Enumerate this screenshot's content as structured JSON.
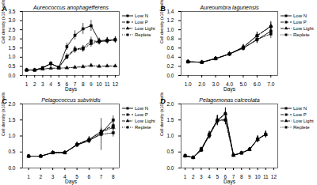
{
  "chart_data": [
    {
      "type": "line",
      "title": "Aureococcus anophagefferens",
      "annotations": [
        "A"
      ],
      "xlabel": "Days",
      "ylabel": "Cell density (x10⁶ cells mL⁻¹)",
      "xlim": [
        0.5,
        12.5
      ],
      "xticks": [
        1,
        2,
        3,
        4,
        5,
        6,
        7,
        8,
        9,
        10,
        11,
        12
      ],
      "ylim": [
        0.0,
        3.5
      ],
      "yticks": [
        {
          "value": 0.0,
          "label": "0.0"
        },
        0.5,
        {
          "value": 1.0,
          "label": "1.0"
        },
        1.5,
        {
          "value": 2.0,
          "label": "2.0"
        },
        2.5,
        {
          "value": 3.0,
          "label": "3.0"
        },
        3.5
      ],
      "grid": false,
      "x": [
        1,
        2,
        3,
        4,
        5,
        6,
        7,
        8,
        9,
        10,
        11,
        12
      ],
      "series": [
        {
          "name": "Low N",
          "color": "black",
          "marker": "square",
          "line_style": "solid",
          "values": [
            0.3,
            0.3,
            0.42,
            0.65,
            0.45,
            1.58,
            2.2,
            2.55,
            2.72,
            1.9,
            1.93,
            1.95
          ],
          "yerr": [
            0.04,
            0.04,
            0.05,
            0.1,
            0.05,
            0.2,
            0.25,
            0.3,
            0.3,
            0.15,
            0.15,
            0.15
          ]
        },
        {
          "name": "Low P",
          "color": "black",
          "marker": "square",
          "line_style": "dashed",
          "values": [
            0.3,
            0.3,
            0.42,
            0.65,
            0.45,
            1.05,
            1.45,
            1.5,
            1.9,
            1.85,
            1.9,
            1.95
          ],
          "yerr": [
            0.04,
            0.04,
            0.05,
            0.1,
            0.05,
            0.15,
            0.15,
            0.15,
            0.2,
            0.15,
            0.15,
            0.15
          ]
        },
        {
          "name": "Low Light",
          "color": "black",
          "marker": "triangle",
          "line_style": "dashdot",
          "values": [
            0.3,
            0.3,
            0.35,
            0.4,
            0.4,
            0.42,
            0.45,
            0.48,
            0.55,
            0.5,
            0.52,
            0.52
          ],
          "yerr": [
            0.03,
            0.03,
            0.03,
            0.04,
            0.04,
            0.04,
            0.04,
            0.04,
            0.06,
            0.04,
            0.04,
            0.04
          ]
        },
        {
          "name": "Replete",
          "color": "black",
          "marker": "square",
          "line_style": "dotted",
          "values": [
            0.3,
            0.3,
            0.42,
            0.65,
            0.45,
            1.0,
            1.4,
            1.45,
            1.75,
            1.85,
            1.9,
            1.95
          ],
          "yerr": [
            0.04,
            0.04,
            0.05,
            0.1,
            0.05,
            0.1,
            0.18,
            0.18,
            0.2,
            0.18,
            0.18,
            0.18
          ]
        }
      ]
    },
    {
      "type": "line",
      "title": "Aureoumbra lagunensis",
      "annotations": [
        "B"
      ],
      "xlabel": "Days",
      "ylabel": "Cell density (x10⁶ cells mL⁻¹)",
      "xlim": [
        0.5,
        7.5
      ],
      "xticks": [
        1,
        2,
        3,
        4,
        5,
        6,
        7
      ],
      "ylim": [
        0.0,
        1.4
      ],
      "yticks": [
        {
          "value": 0.0,
          "label": "0.0"
        },
        0.2,
        0.4,
        0.6,
        0.8,
        {
          "value": 1.0,
          "label": "1.0"
        },
        1.2,
        1.4
      ],
      "grid": false,
      "x": [
        1,
        2,
        3,
        4,
        5,
        6,
        7
      ],
      "series": [
        {
          "name": "Low N",
          "color": "black",
          "marker": "square",
          "line_style": "solid",
          "values": [
            0.3,
            0.29,
            0.37,
            0.47,
            0.6,
            0.78,
            0.97
          ],
          "yerr": [
            0.04,
            0.04,
            0.04,
            0.05,
            0.06,
            0.08,
            0.1
          ]
        },
        {
          "name": "Low P",
          "color": "black",
          "marker": "square",
          "line_style": "dashed",
          "values": [
            0.3,
            0.29,
            0.37,
            0.47,
            0.62,
            0.87,
            1.07
          ],
          "yerr": [
            0.04,
            0.04,
            0.04,
            0.05,
            0.06,
            0.08,
            0.1
          ]
        },
        {
          "name": "Low Light",
          "color": "black",
          "marker": "triangle",
          "line_style": "dashdot",
          "values": [
            0.3,
            0.29,
            0.37,
            0.47,
            0.62,
            0.87,
            1.08
          ],
          "yerr": [
            0.04,
            0.04,
            0.04,
            0.05,
            0.06,
            0.08,
            0.1
          ]
        },
        {
          "name": "Replete",
          "color": "black",
          "marker": "square",
          "line_style": "dotted",
          "values": [
            0.3,
            0.29,
            0.37,
            0.47,
            0.6,
            0.79,
            0.91
          ],
          "yerr": [
            0.04,
            0.04,
            0.04,
            0.05,
            0.06,
            0.08,
            0.1
          ]
        }
      ]
    },
    {
      "type": "line",
      "title": "Pelagococcus subviridis",
      "annotations": [
        "C"
      ],
      "xlabel": "Days",
      "ylabel": "Cell density (x10⁶ cells mL⁻¹)",
      "xlim": [
        0.5,
        8.5
      ],
      "xticks": [
        1,
        2,
        3,
        4,
        5,
        6,
        7,
        8
      ],
      "ylim": [
        0.0,
        2.0
      ],
      "yticks": [
        {
          "value": 0.0,
          "label": "0.0"
        },
        0.5,
        {
          "value": 1.0,
          "label": "1.0"
        },
        1.5,
        {
          "value": 2.0,
          "label": "2.0"
        }
      ],
      "grid": false,
      "x": [
        1,
        2,
        3,
        4,
        5,
        6,
        7,
        8
      ],
      "series": [
        {
          "name": "Low N",
          "color": "black",
          "marker": "square",
          "line_style": "solid",
          "values": [
            0.37,
            0.37,
            0.48,
            0.48,
            0.72,
            0.85,
            1.08,
            1.5
          ],
          "yerr": [
            0.04,
            0.04,
            0.05,
            0.05,
            0.07,
            0.09,
            0.1,
            0.13
          ]
        },
        {
          "name": "Low P",
          "color": "black",
          "marker": "square",
          "line_style": "dashed",
          "values": [
            0.37,
            0.37,
            0.48,
            0.48,
            0.72,
            0.88,
            1.15,
            1.32
          ],
          "yerr": [
            0.04,
            0.04,
            0.05,
            0.05,
            0.07,
            0.09,
            0.1,
            0.12
          ]
        },
        {
          "name": "Low Light",
          "color": "black",
          "marker": "triangle",
          "line_style": "dashdot",
          "values": [
            0.37,
            0.37,
            0.48,
            0.48,
            0.74,
            0.9,
            1.12,
            1.27
          ],
          "yerr": [
            0.04,
            0.04,
            0.05,
            0.05,
            0.07,
            0.09,
            0.1,
            0.1
          ]
        },
        {
          "name": "Replete",
          "color": "black",
          "marker": "square",
          "line_style": "dotted",
          "values": [
            0.37,
            0.37,
            0.48,
            0.48,
            0.73,
            0.87,
            1.05,
            1.1
          ],
          "yerr": [
            0.04,
            0.04,
            0.05,
            0.05,
            0.07,
            0.09,
            0.5,
            0.13
          ]
        }
      ]
    },
    {
      "type": "line",
      "title": "Pelagomonas calceolata",
      "annotations": [
        "D"
      ],
      "xlabel": "Days",
      "ylabel": "Cell density (x10⁶ cells mL⁻¹)",
      "xlim": [
        0.5,
        12.5
      ],
      "xticks": [
        1,
        2,
        3,
        4,
        5,
        6,
        7,
        8,
        9,
        10,
        11,
        12
      ],
      "ylim": [
        0.0,
        2.0
      ],
      "yticks": [
        {
          "value": 0.0,
          "label": "0.0"
        },
        0.5,
        {
          "value": 1.0,
          "label": "1.0"
        },
        1.5,
        {
          "value": 2.0,
          "label": "2.0"
        }
      ],
      "grid": false,
      "x": [
        1,
        2,
        3,
        4,
        5,
        6,
        7,
        8,
        9,
        10,
        11
      ],
      "series": [
        {
          "name": "Low N",
          "color": "black",
          "marker": "square",
          "line_style": "solid",
          "values": [
            0.38,
            0.33,
            0.55,
            1.03,
            1.47,
            1.7,
            0.4,
            0.47,
            0.58,
            0.9,
            1.05
          ],
          "yerr": [
            0.05,
            0.04,
            0.06,
            0.1,
            0.15,
            0.18,
            0.05,
            0.05,
            0.06,
            0.1,
            0.1
          ]
        },
        {
          "name": "Low P",
          "color": "black",
          "marker": "square",
          "line_style": "dashed",
          "values": [
            0.38,
            0.33,
            0.6,
            1.05,
            1.5,
            1.5,
            0.4,
            0.47,
            0.58,
            0.9,
            1.05
          ],
          "yerr": [
            0.05,
            0.04,
            0.06,
            0.1,
            0.15,
            0.15,
            0.05,
            0.05,
            0.06,
            0.1,
            0.1
          ]
        },
        {
          "name": "Low Light",
          "color": "black",
          "marker": "triangle",
          "line_style": "dashdot",
          "values": [
            0.38,
            0.33,
            0.58,
            1.05,
            1.5,
            1.7,
            0.4,
            0.47,
            0.58,
            0.9,
            1.05
          ],
          "yerr": [
            0.05,
            0.04,
            0.06,
            0.1,
            0.15,
            0.18,
            0.05,
            0.05,
            0.06,
            0.1,
            0.1
          ]
        },
        {
          "name": "Replete",
          "color": "black",
          "marker": "square",
          "line_style": "dotted",
          "values": [
            0.38,
            0.33,
            0.58,
            1.0,
            1.48,
            1.5,
            0.4,
            0.47,
            0.58,
            0.9,
            1.05
          ],
          "yerr": [
            0.05,
            0.04,
            0.06,
            0.1,
            0.15,
            0.15,
            0.05,
            0.05,
            0.06,
            0.1,
            0.1
          ]
        }
      ]
    }
  ]
}
